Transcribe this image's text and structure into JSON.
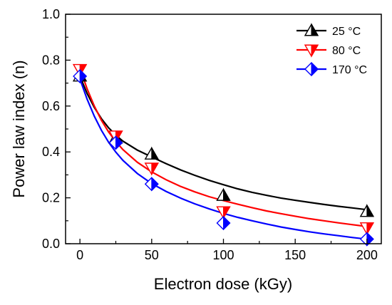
{
  "chart_data": {
    "type": "line",
    "title": "",
    "xlabel": "Electron dose (kGy)",
    "ylabel": "Power law index (n)",
    "xlim": [
      -10,
      210
    ],
    "ylim": [
      0.0,
      1.0
    ],
    "xticks": [
      0,
      50,
      100,
      150,
      200
    ],
    "yticks": [
      0.0,
      0.2,
      0.4,
      0.6,
      0.8,
      1.0
    ],
    "xtick_labels": [
      "0",
      "50",
      "100",
      "150",
      "200"
    ],
    "ytick_labels": [
      "0.0",
      "0.2",
      "0.4",
      "0.6",
      "0.8",
      "1.0"
    ],
    "grid": false,
    "legend_position": "top-right",
    "series": [
      {
        "name": "25 °C",
        "color": "#000000",
        "marker": "triangle-up",
        "x": [
          0,
          25,
          50,
          100,
          200
        ],
        "y": [
          0.73,
          0.46,
          0.39,
          0.21,
          0.14
        ],
        "fit": [
          [
            0,
            0.73
          ],
          [
            5,
            0.655
          ],
          [
            10,
            0.594
          ],
          [
            15,
            0.545
          ],
          [
            20,
            0.505
          ],
          [
            25,
            0.473
          ],
          [
            30,
            0.447
          ],
          [
            40,
            0.408
          ],
          [
            50,
            0.378
          ],
          [
            60,
            0.349
          ],
          [
            70,
            0.322
          ],
          [
            80,
            0.298
          ],
          [
            90,
            0.276
          ],
          [
            100,
            0.257
          ],
          [
            110,
            0.239
          ],
          [
            120,
            0.224
          ],
          [
            130,
            0.211
          ],
          [
            140,
            0.199
          ],
          [
            150,
            0.189
          ],
          [
            160,
            0.18
          ],
          [
            170,
            0.171
          ],
          [
            180,
            0.163
          ],
          [
            190,
            0.156
          ],
          [
            200,
            0.148
          ]
        ]
      },
      {
        "name": "80 °C",
        "color": "#ff0000",
        "marker": "triangle-down",
        "x": [
          0,
          25,
          50,
          100,
          200
        ],
        "y": [
          0.76,
          0.47,
          0.33,
          0.14,
          0.07
        ],
        "fit": [
          [
            0,
            0.765
          ],
          [
            5,
            0.675
          ],
          [
            10,
            0.6
          ],
          [
            15,
            0.538
          ],
          [
            20,
            0.487
          ],
          [
            25,
            0.445
          ],
          [
            30,
            0.41
          ],
          [
            40,
            0.355
          ],
          [
            50,
            0.313
          ],
          [
            60,
            0.279
          ],
          [
            70,
            0.25
          ],
          [
            80,
            0.226
          ],
          [
            90,
            0.205
          ],
          [
            100,
            0.188
          ],
          [
            110,
            0.172
          ],
          [
            120,
            0.157
          ],
          [
            130,
            0.143
          ],
          [
            140,
            0.131
          ],
          [
            150,
            0.12
          ],
          [
            160,
            0.109
          ],
          [
            170,
            0.1
          ],
          [
            180,
            0.091
          ],
          [
            190,
            0.083
          ],
          [
            200,
            0.075
          ]
        ]
      },
      {
        "name": "170 °C",
        "color": "#0000ff",
        "marker": "diamond",
        "x": [
          0,
          25,
          50,
          100,
          200
        ],
        "y": [
          0.73,
          0.44,
          0.26,
          0.09,
          0.02
        ],
        "fit": [
          [
            0,
            0.718
          ],
          [
            5,
            0.63
          ],
          [
            10,
            0.556
          ],
          [
            15,
            0.494
          ],
          [
            20,
            0.442
          ],
          [
            25,
            0.399
          ],
          [
            30,
            0.363
          ],
          [
            40,
            0.306
          ],
          [
            50,
            0.262
          ],
          [
            60,
            0.228
          ],
          [
            70,
            0.199
          ],
          [
            80,
            0.174
          ],
          [
            90,
            0.152
          ],
          [
            100,
            0.132
          ],
          [
            110,
            0.115
          ],
          [
            120,
            0.1
          ],
          [
            130,
            0.086
          ],
          [
            140,
            0.073
          ],
          [
            150,
            0.062
          ],
          [
            160,
            0.052
          ],
          [
            170,
            0.043
          ],
          [
            180,
            0.035
          ],
          [
            190,
            0.027
          ],
          [
            200,
            0.02
          ]
        ]
      }
    ]
  }
}
